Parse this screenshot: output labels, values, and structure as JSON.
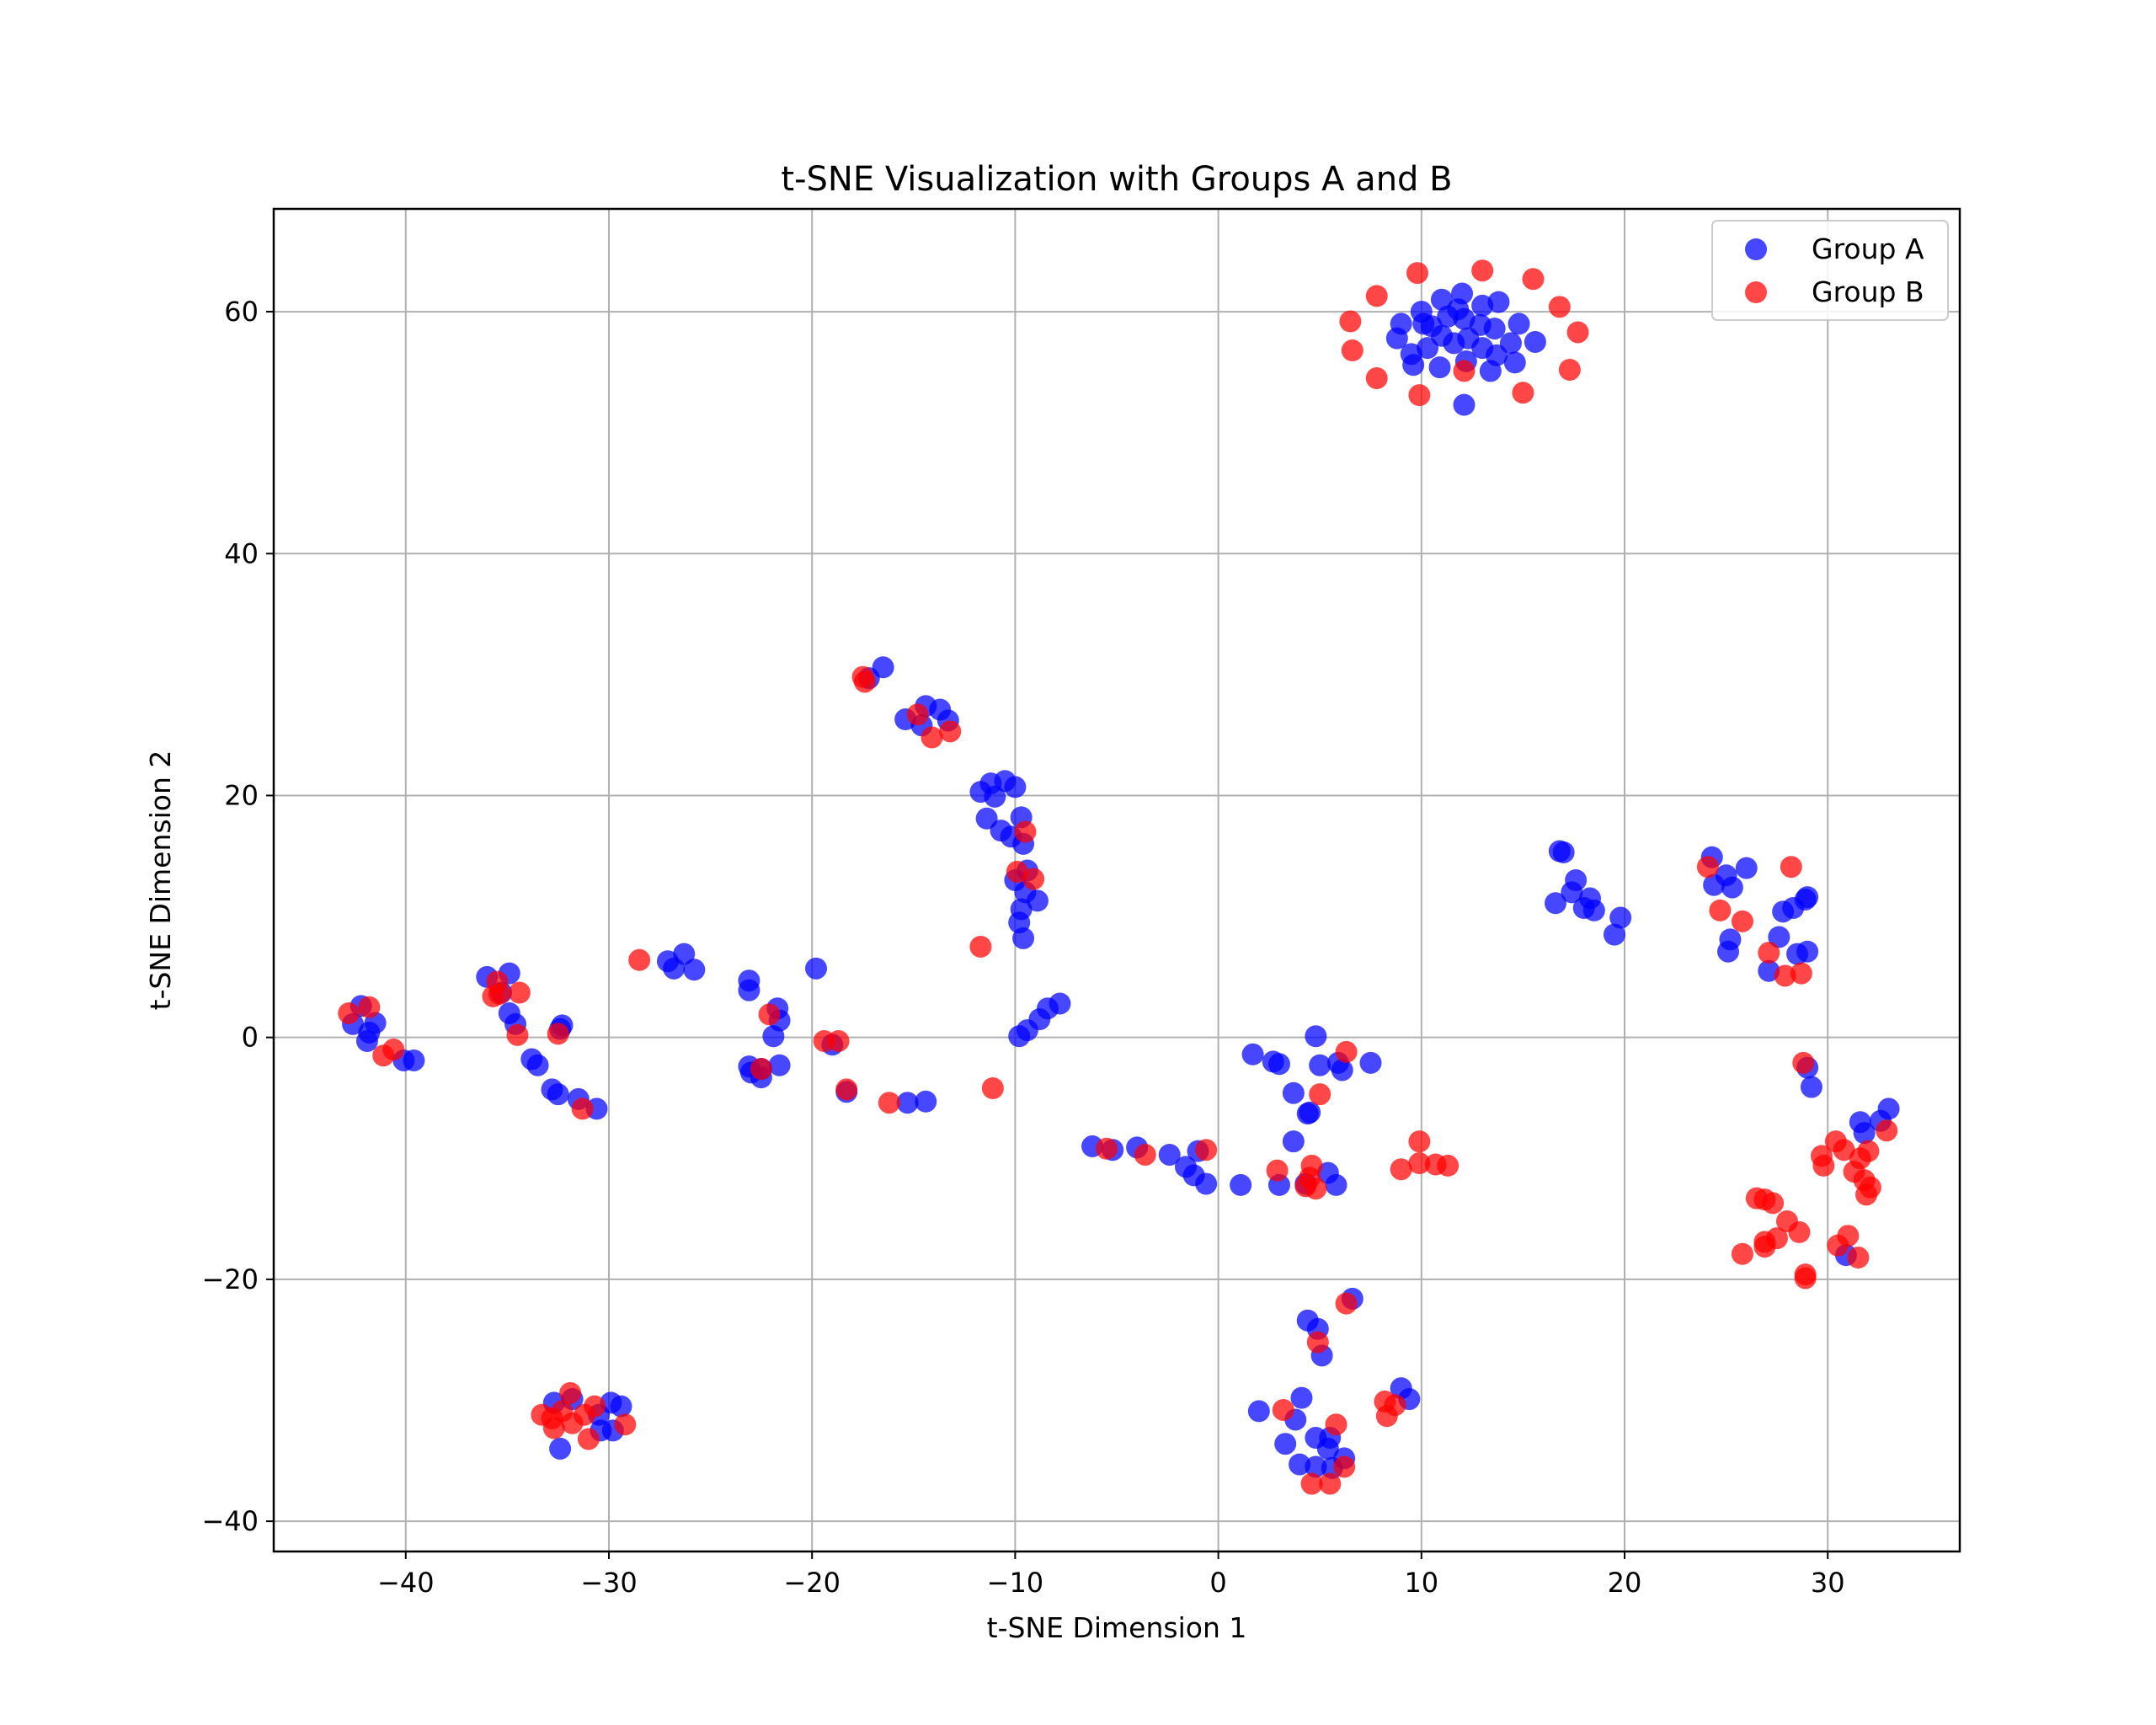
{
  "chart_data": {
    "type": "scatter",
    "title": "t-SNE Visualization with Groups A and B",
    "xlabel": "t-SNE Dimension 1",
    "ylabel": "t-SNE Dimension 2",
    "xlim": [
      -46.5,
      36.5
    ],
    "ylim": [
      -42.5,
      68.5
    ],
    "xticks": [
      -40,
      -30,
      -20,
      -10,
      0,
      10,
      20,
      30
    ],
    "yticks": [
      -40,
      -20,
      0,
      20,
      40,
      60
    ],
    "grid": true,
    "legend_position": "top-right",
    "colors": {
      "Group A": "#0000ff",
      "Group B": "#ff0000"
    },
    "series": [
      {
        "name": "Group A",
        "color": "#0000ff",
        "points": [
          [
            9,
            59
          ],
          [
            10,
            60
          ],
          [
            11,
            61
          ],
          [
            12,
            61.5
          ],
          [
            13,
            60.5
          ],
          [
            13.8,
            60.8
          ],
          [
            14.8,
            59
          ],
          [
            15.6,
            57.5
          ],
          [
            8.8,
            57.8
          ],
          [
            9.5,
            56.5
          ],
          [
            10.3,
            57
          ],
          [
            11,
            58
          ],
          [
            11.6,
            57.4
          ],
          [
            12.3,
            57.8
          ],
          [
            13,
            57
          ],
          [
            13.7,
            56.4
          ],
          [
            14.4,
            57.4
          ],
          [
            10.5,
            58.8
          ],
          [
            11.3,
            59.6
          ],
          [
            12.1,
            59.4
          ],
          [
            12.9,
            58.9
          ],
          [
            13.6,
            58.6
          ],
          [
            9.6,
            55.6
          ],
          [
            10.9,
            55.4
          ],
          [
            12.2,
            55.9
          ],
          [
            13.4,
            55.1
          ],
          [
            14.6,
            55.8
          ],
          [
            12.1,
            52.3
          ],
          [
            11.8,
            60.2
          ],
          [
            10.1,
            59
          ],
          [
            -16.5,
            30.6
          ],
          [
            -17.2,
            29.7
          ],
          [
            -15.4,
            26.3
          ],
          [
            -14.6,
            25.8
          ],
          [
            -14.4,
            27.4
          ],
          [
            -13.7,
            27.1
          ],
          [
            -13.3,
            26.2
          ],
          [
            -11.7,
            20.3
          ],
          [
            -11.2,
            21
          ],
          [
            -10.5,
            21.2
          ],
          [
            -10,
            20.7
          ],
          [
            -11,
            19.9
          ],
          [
            -11.4,
            18.1
          ],
          [
            -10.7,
            17.1
          ],
          [
            -10.2,
            16.6
          ],
          [
            -9.6,
            16
          ],
          [
            -9.7,
            18.2
          ],
          [
            -9.4,
            13.8
          ],
          [
            -10,
            13
          ],
          [
            -9.5,
            12
          ],
          [
            -8.9,
            11.3
          ],
          [
            -9.7,
            10.6
          ],
          [
            -9.8,
            9.5
          ],
          [
            -9.6,
            8.2
          ],
          [
            -9.4,
            0.6
          ],
          [
            -8.8,
            1.5
          ],
          [
            -8.4,
            2.4
          ],
          [
            -7.8,
            2.8
          ],
          [
            -9.8,
            0.1
          ],
          [
            -19.8,
            5.7
          ],
          [
            -23.1,
            4.7
          ],
          [
            -23.1,
            3.9
          ],
          [
            -21.7,
            2.4
          ],
          [
            -21.6,
            1.4
          ],
          [
            -21.9,
            0.1
          ],
          [
            -21.6,
            -2.3
          ],
          [
            -22.5,
            -2.6
          ],
          [
            -23.1,
            -2.4
          ],
          [
            -22.5,
            -3.3
          ],
          [
            -23,
            -2.9
          ],
          [
            -19,
            -0.6
          ],
          [
            -18.3,
            -4.5
          ],
          [
            -15.3,
            -5.4
          ],
          [
            -14.4,
            -5.3
          ],
          [
            -27.1,
            6.3
          ],
          [
            -26.8,
            5.7
          ],
          [
            -26.3,
            6.9
          ],
          [
            -25.8,
            5.6
          ],
          [
            -36,
            5
          ],
          [
            -34.9,
            5.3
          ],
          [
            -35.3,
            3.7
          ],
          [
            -34.9,
            2
          ],
          [
            -34.6,
            1.1
          ],
          [
            -33.8,
            -1.8
          ],
          [
            -33.5,
            -2.3
          ],
          [
            -32.3,
            1
          ],
          [
            -32.4,
            0.7
          ],
          [
            -32.8,
            -4.3
          ],
          [
            -32.5,
            -4.7
          ],
          [
            -31.5,
            -5.1
          ],
          [
            -30.6,
            -5.9
          ],
          [
            -42.6,
            1.1
          ],
          [
            -42.2,
            2.6
          ],
          [
            -41.9,
            -0.3
          ],
          [
            -41.5,
            1.2
          ],
          [
            -41.8,
            0.4
          ],
          [
            -40.1,
            -1.9
          ],
          [
            -39.6,
            -1.9
          ],
          [
            -32.7,
            -30.2
          ],
          [
            -32.4,
            -34
          ],
          [
            -31.8,
            -29.9
          ],
          [
            -30.5,
            -31.2
          ],
          [
            -29.9,
            -30.2
          ],
          [
            -29.8,
            -32.5
          ],
          [
            -29.4,
            -30.5
          ],
          [
            -30.4,
            -32.5
          ],
          [
            16.8,
            15.4
          ],
          [
            17,
            15.3
          ],
          [
            16.6,
            11.1
          ],
          [
            17.4,
            12
          ],
          [
            17.6,
            13
          ],
          [
            18,
            10.7
          ],
          [
            18.3,
            11.5
          ],
          [
            18.5,
            10.5
          ],
          [
            19.5,
            8.5
          ],
          [
            19.8,
            9.9
          ],
          [
            24.3,
            14.9
          ],
          [
            24.4,
            12.6
          ],
          [
            25,
            13.4
          ],
          [
            25.3,
            12.4
          ],
          [
            26,
            14
          ],
          [
            25.2,
            8.1
          ],
          [
            25.1,
            7.1
          ],
          [
            27.1,
            5.5
          ],
          [
            27.6,
            8.3
          ],
          [
            27.8,
            10.4
          ],
          [
            28.3,
            10.7
          ],
          [
            28.9,
            11.4
          ],
          [
            29,
            11.6
          ],
          [
            29,
            7.1
          ],
          [
            28.5,
            6.9
          ],
          [
            29,
            -2.5
          ],
          [
            29.2,
            -4.1
          ],
          [
            31.6,
            -7
          ],
          [
            31.8,
            -7.9
          ],
          [
            32.6,
            -6.9
          ],
          [
            33,
            -5.9
          ],
          [
            30.9,
            -18
          ],
          [
            -6.2,
            -9
          ],
          [
            -5.2,
            -9.3
          ],
          [
            -4,
            -9.1
          ],
          [
            -2.4,
            -9.7
          ],
          [
            -1.6,
            -10.7
          ],
          [
            -1.2,
            -11.4
          ],
          [
            -0.6,
            -12.1
          ],
          [
            -1,
            -9.4
          ],
          [
            1.1,
            -12.2
          ],
          [
            1.7,
            -1.4
          ],
          [
            2.7,
            -2
          ],
          [
            3,
            -2.2
          ],
          [
            3.7,
            -4.6
          ],
          [
            4.8,
            0.1
          ],
          [
            5,
            -2.3
          ],
          [
            5.9,
            -2.1
          ],
          [
            6.1,
            -2.7
          ],
          [
            7.5,
            -2.1
          ],
          [
            4.4,
            -6.3
          ],
          [
            4.5,
            -6.2
          ],
          [
            3.7,
            -8.6
          ],
          [
            3,
            -12.2
          ],
          [
            4.3,
            -12.1
          ],
          [
            5.4,
            -11.2
          ],
          [
            5.8,
            -12.2
          ],
          [
            4.4,
            -23.4
          ],
          [
            4.9,
            -24.1
          ],
          [
            5.1,
            -26.3
          ],
          [
            6.6,
            -21.6
          ],
          [
            2,
            -30.9
          ],
          [
            3.8,
            -31.6
          ],
          [
            4.1,
            -29.8
          ],
          [
            3.3,
            -33.6
          ],
          [
            4,
            -35.3
          ],
          [
            4.8,
            -35.5
          ],
          [
            4.8,
            -33.1
          ],
          [
            5.4,
            -34
          ],
          [
            5.5,
            -33.1
          ],
          [
            5.6,
            -35.6
          ],
          [
            6.2,
            -34.8
          ],
          [
            9,
            -29
          ],
          [
            9.4,
            -29.9
          ]
        ]
      },
      {
        "name": "Group B",
        "color": "#ff0000",
        "points": [
          [
            6.5,
            59.2
          ],
          [
            6.6,
            56.8
          ],
          [
            7.8,
            61.3
          ],
          [
            7.8,
            54.5
          ],
          [
            9.8,
            63.2
          ],
          [
            9.9,
            53.1
          ],
          [
            12.1,
            55.1
          ],
          [
            13,
            63.4
          ],
          [
            15,
            53.3
          ],
          [
            15.5,
            62.7
          ],
          [
            16.8,
            60.4
          ],
          [
            17.3,
            55.2
          ],
          [
            17.7,
            58.3
          ],
          [
            -17.5,
            29.8
          ],
          [
            -17.4,
            29.4
          ],
          [
            -14.8,
            26.7
          ],
          [
            -14.1,
            24.8
          ],
          [
            -13.2,
            25.3
          ],
          [
            -9.5,
            17
          ],
          [
            -9.9,
            13.7
          ],
          [
            -9.1,
            13.1
          ],
          [
            -11.7,
            7.5
          ],
          [
            -11.1,
            -4.2
          ],
          [
            -19.4,
            -0.3
          ],
          [
            -18.7,
            -0.3
          ],
          [
            -18.3,
            -4.3
          ],
          [
            -16.2,
            -5.4
          ],
          [
            -22.1,
            1.9
          ],
          [
            -22.5,
            -2.6
          ],
          [
            -28.5,
            6.4
          ],
          [
            -35.5,
            4.6
          ],
          [
            -35.7,
            3.4
          ],
          [
            -35.4,
            3.6
          ],
          [
            -34.4,
            3.7
          ],
          [
            -34.5,
            0.2
          ],
          [
            -32.5,
            0.3
          ],
          [
            -31.3,
            -5.9
          ],
          [
            -42.8,
            2
          ],
          [
            -41.8,
            2.5
          ],
          [
            -41.1,
            -1.5
          ],
          [
            -40.6,
            -1
          ],
          [
            -33.3,
            -31.2
          ],
          [
            -32.8,
            -31.5
          ],
          [
            -32.7,
            -32.3
          ],
          [
            -32.3,
            -30.9
          ],
          [
            -31.9,
            -29.4
          ],
          [
            -31.8,
            -31.9
          ],
          [
            -31.2,
            -31.2
          ],
          [
            -31,
            -33.2
          ],
          [
            -30.7,
            -30.5
          ],
          [
            -29.2,
            -32
          ],
          [
            24.1,
            14.1
          ],
          [
            24.7,
            10.5
          ],
          [
            25.8,
            9.6
          ],
          [
            28.2,
            14.1
          ],
          [
            27.1,
            7
          ],
          [
            27.9,
            5.1
          ],
          [
            28.7,
            5.3
          ],
          [
            28.8,
            -2.1
          ],
          [
            26.5,
            -13.3
          ],
          [
            26.9,
            -13.4
          ],
          [
            27.3,
            -13.7
          ],
          [
            26.9,
            -17.3
          ],
          [
            26.9,
            -16.9
          ],
          [
            27.5,
            -16.6
          ],
          [
            28,
            -15.2
          ],
          [
            28.6,
            -16.1
          ],
          [
            25.8,
            -17.9
          ],
          [
            28.9,
            -19.6
          ],
          [
            28.9,
            -19.9
          ],
          [
            29.7,
            -9.8
          ],
          [
            29.8,
            -10.6
          ],
          [
            30.4,
            -8.6
          ],
          [
            30.8,
            -9.3
          ],
          [
            30.5,
            -17.2
          ],
          [
            31,
            -16.4
          ],
          [
            31.3,
            -11.1
          ],
          [
            31.5,
            -18.2
          ],
          [
            31.6,
            -10
          ],
          [
            31.8,
            -11.8
          ],
          [
            31.9,
            -13
          ],
          [
            32,
            -9.4
          ],
          [
            32.1,
            -12.4
          ],
          [
            32.9,
            -7.7
          ],
          [
            -5.5,
            -9.2
          ],
          [
            -3.6,
            -9.7
          ],
          [
            -0.6,
            -9.3
          ],
          [
            2.9,
            -11
          ],
          [
            4.3,
            -12.3
          ],
          [
            4.5,
            -11.6
          ],
          [
            4.6,
            -10.6
          ],
          [
            4.8,
            -12.5
          ],
          [
            5,
            -4.7
          ],
          [
            6.3,
            -1.2
          ],
          [
            9,
            -10.9
          ],
          [
            9.9,
            -8.6
          ],
          [
            9.9,
            -10.4
          ],
          [
            10.7,
            -10.5
          ],
          [
            11.3,
            -10.6
          ],
          [
            4.9,
            -25.2
          ],
          [
            6.3,
            -22
          ],
          [
            3.2,
            -30.8
          ],
          [
            4.6,
            -36.9
          ],
          [
            5.5,
            -36.9
          ],
          [
            5.8,
            -32
          ],
          [
            6.2,
            -35.5
          ],
          [
            8.2,
            -30.1
          ],
          [
            8.3,
            -31.3
          ],
          [
            8.7,
            -30.4
          ]
        ]
      }
    ]
  }
}
